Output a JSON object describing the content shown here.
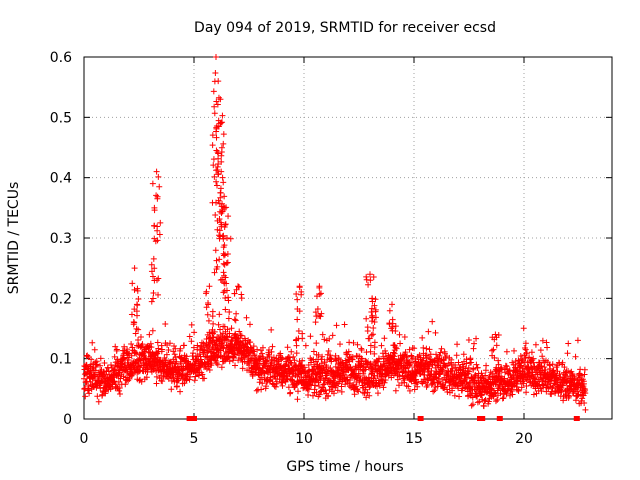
{
  "chart_data": {
    "type": "scatter",
    "title": "Day 094 of 2019, SRMTID for receiver ecsd",
    "xlabel": "GPS time / hours",
    "ylabel": "SRMTID / TECUs",
    "xlim": [
      0,
      24
    ],
    "ylim": [
      0,
      0.6
    ],
    "xticks": [
      0,
      5,
      10,
      15,
      20
    ],
    "xtick_labels": [
      "0",
      "5",
      "10",
      "15",
      "20"
    ],
    "yticks": [
      0,
      0.1,
      0.2,
      0.3,
      0.4,
      0.5,
      0.6
    ],
    "ytick_labels": [
      "0",
      "0.1",
      "0.2",
      "0.3",
      "0.4",
      "0.5",
      "0.6"
    ],
    "grid": true,
    "marker": "plus",
    "color": "#ff0000",
    "series": [
      {
        "name": "SRMTID",
        "x_range": [
          0,
          22.8
        ],
        "point_spacing_hours": 0.0083,
        "baseline_envelope": [
          [
            0,
            0.07
          ],
          [
            1,
            0.06
          ],
          [
            2,
            0.09
          ],
          [
            3,
            0.1
          ],
          [
            4,
            0.08
          ],
          [
            5,
            0.09
          ],
          [
            6,
            0.12
          ],
          [
            7,
            0.12
          ],
          [
            8,
            0.08
          ],
          [
            9,
            0.08
          ],
          [
            10,
            0.07
          ],
          [
            11,
            0.07
          ],
          [
            12,
            0.08
          ],
          [
            13,
            0.07
          ],
          [
            14,
            0.09
          ],
          [
            15,
            0.08
          ],
          [
            16,
            0.08
          ],
          [
            17,
            0.07
          ],
          [
            18,
            0.05
          ],
          [
            19,
            0.06
          ],
          [
            20,
            0.08
          ],
          [
            21,
            0.07
          ],
          [
            22,
            0.06
          ],
          [
            22.8,
            0.05
          ]
        ],
        "spikes": [
          {
            "x": 2.3,
            "y": 0.25
          },
          {
            "x": 3.3,
            "y": 0.41
          },
          {
            "x": 3.2,
            "y": 0.35
          },
          {
            "x": 5.7,
            "y": 0.22
          },
          {
            "x": 6.0,
            "y": 0.6
          },
          {
            "x": 6.1,
            "y": 0.56
          },
          {
            "x": 6.2,
            "y": 0.53
          },
          {
            "x": 6.2,
            "y": 0.49
          },
          {
            "x": 6.1,
            "y": 0.44
          },
          {
            "x": 6.3,
            "y": 0.4
          },
          {
            "x": 6.4,
            "y": 0.35
          },
          {
            "x": 6.5,
            "y": 0.3
          },
          {
            "x": 7.0,
            "y": 0.22
          },
          {
            "x": 9.8,
            "y": 0.22
          },
          {
            "x": 10.7,
            "y": 0.22
          },
          {
            "x": 13.0,
            "y": 0.24
          },
          {
            "x": 13.1,
            "y": 0.2
          },
          {
            "x": 14.0,
            "y": 0.19
          },
          {
            "x": 18.7,
            "y": 0.14
          }
        ],
        "zero_points": [
          4.8,
          5.0,
          15.3,
          18.0,
          18.1,
          18.9,
          22.4
        ]
      }
    ]
  }
}
